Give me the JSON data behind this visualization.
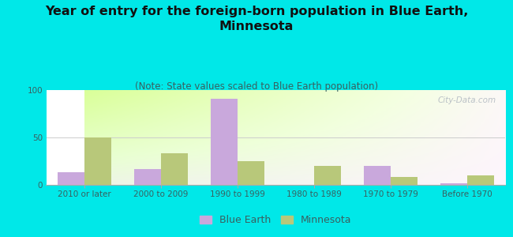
{
  "title": "Year of entry for the foreign-born population in Blue Earth,\nMinnesota",
  "subtitle": "(Note: State values scaled to Blue Earth population)",
  "categories": [
    "2010 or later",
    "2000 to 2009",
    "1990 to 1999",
    "1980 to 1989",
    "1970 to 1979",
    "Before 1970"
  ],
  "blue_earth_values": [
    13,
    17,
    91,
    0,
    20,
    2
  ],
  "minnesota_values": [
    50,
    33,
    25,
    20,
    8,
    10
  ],
  "blue_earth_color": "#c9a8dc",
  "minnesota_color": "#b8c87a",
  "background_outer": "#00e8e8",
  "ylim": [
    0,
    100
  ],
  "yticks": [
    0,
    50,
    100
  ],
  "bar_width": 0.35,
  "title_fontsize": 11.5,
  "subtitle_fontsize": 8.5,
  "tick_fontsize": 7.5,
  "legend_fontsize": 9,
  "watermark_text": "City-Data.com",
  "watermark_color": "#b0b8c0",
  "tick_label_color": "#3a6060",
  "title_color": "#111111",
  "subtitle_color": "#3a6060"
}
